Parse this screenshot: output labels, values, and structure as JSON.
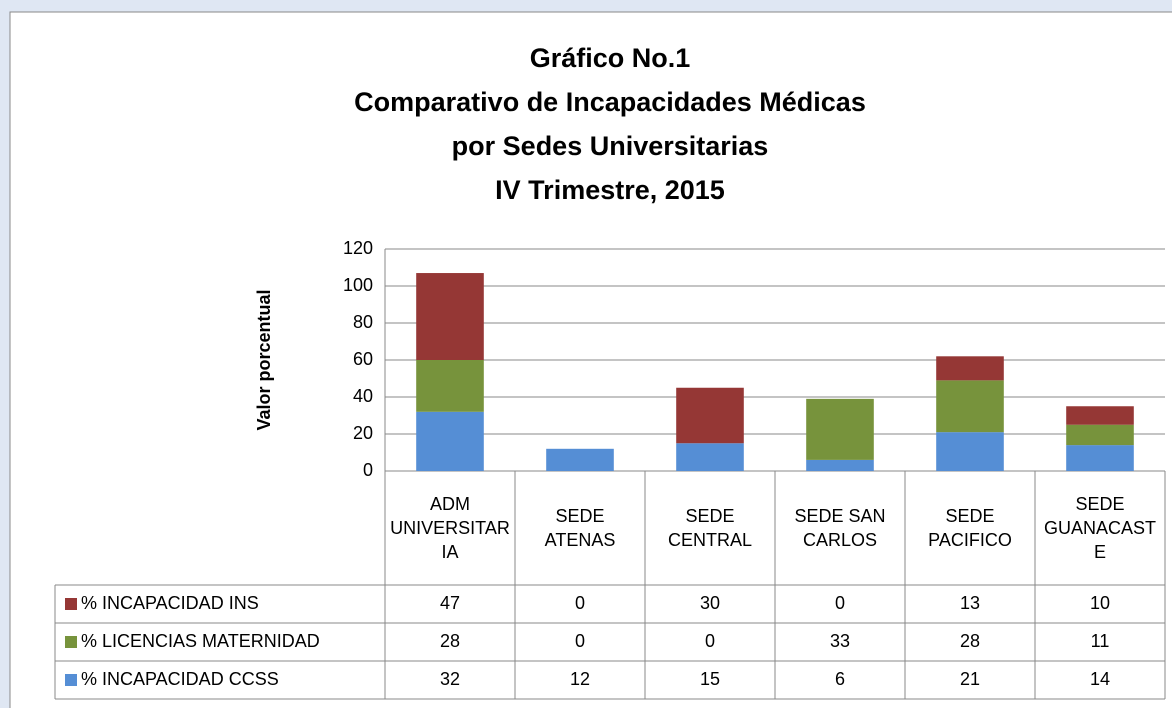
{
  "chart_data": {
    "type": "stacked_bar",
    "title": [
      "Gráfico No.1",
      "Comparativo de Incapacidades Médicas",
      "por Sedes Universitarias",
      "IV Trimestre, 2015"
    ],
    "y_label": "Valor porcentual",
    "categories": [
      "ADM UNIVERSITARIA",
      "SEDE ATENAS",
      "SEDE CENTRAL",
      "SEDE SAN CARLOS",
      "SEDE PACIFICO",
      "SEDE GUANACASTE"
    ],
    "series": [
      {
        "name": "% INCAPACIDAD CCSS",
        "color": "#558ed5",
        "values": [
          32,
          12,
          15,
          6,
          21,
          14
        ]
      },
      {
        "name": "% LICENCIAS MATERNIDAD",
        "color": "#77933c",
        "values": [
          28,
          0,
          0,
          33,
          28,
          11
        ]
      },
      {
        "name": "% INCAPACIDAD INS",
        "color": "#953735",
        "values": [
          47,
          0,
          30,
          0,
          13,
          10
        ]
      }
    ],
    "ylim": [
      0,
      120
    ],
    "yticks": [
      0,
      20,
      40,
      60,
      80,
      100,
      120
    ],
    "grid": true,
    "data_table": true
  }
}
